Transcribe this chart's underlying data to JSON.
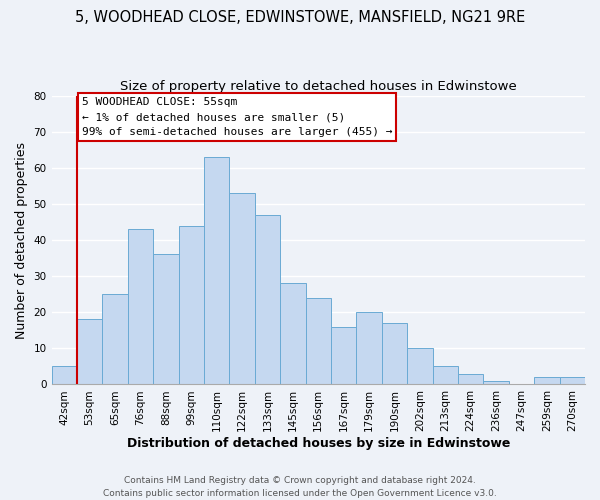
{
  "title": "5, WOODHEAD CLOSE, EDWINSTOWE, MANSFIELD, NG21 9RE",
  "subtitle": "Size of property relative to detached houses in Edwinstowe",
  "xlabel": "Distribution of detached houses by size in Edwinstowe",
  "ylabel": "Number of detached properties",
  "bin_labels": [
    "42sqm",
    "53sqm",
    "65sqm",
    "76sqm",
    "88sqm",
    "99sqm",
    "110sqm",
    "122sqm",
    "133sqm",
    "145sqm",
    "156sqm",
    "167sqm",
    "179sqm",
    "190sqm",
    "202sqm",
    "213sqm",
    "224sqm",
    "236sqm",
    "247sqm",
    "259sqm",
    "270sqm"
  ],
  "bar_heights": [
    5,
    18,
    25,
    43,
    36,
    44,
    63,
    53,
    47,
    28,
    24,
    16,
    20,
    17,
    10,
    5,
    3,
    1,
    0,
    2,
    2
  ],
  "bar_color": "#c5d8f0",
  "bar_edge_color": "#6aaad4",
  "vline_x": 1,
  "vline_color": "#cc0000",
  "annotation_line1": "5 WOODHEAD CLOSE: 55sqm",
  "annotation_line2": "← 1% of detached houses are smaller (5)",
  "annotation_line3": "99% of semi-detached houses are larger (455) →",
  "annotation_box_color": "#cc0000",
  "ylim": [
    0,
    80
  ],
  "yticks": [
    0,
    10,
    20,
    30,
    40,
    50,
    60,
    70,
    80
  ],
  "footer1": "Contains HM Land Registry data © Crown copyright and database right 2024.",
  "footer2": "Contains public sector information licensed under the Open Government Licence v3.0.",
  "bg_color": "#eef2f8",
  "grid_color": "#ffffff",
  "title_fontsize": 10.5,
  "subtitle_fontsize": 9.5,
  "axis_label_fontsize": 9,
  "tick_fontsize": 7.5,
  "footer_fontsize": 6.5,
  "annot_fontsize": 8.0
}
